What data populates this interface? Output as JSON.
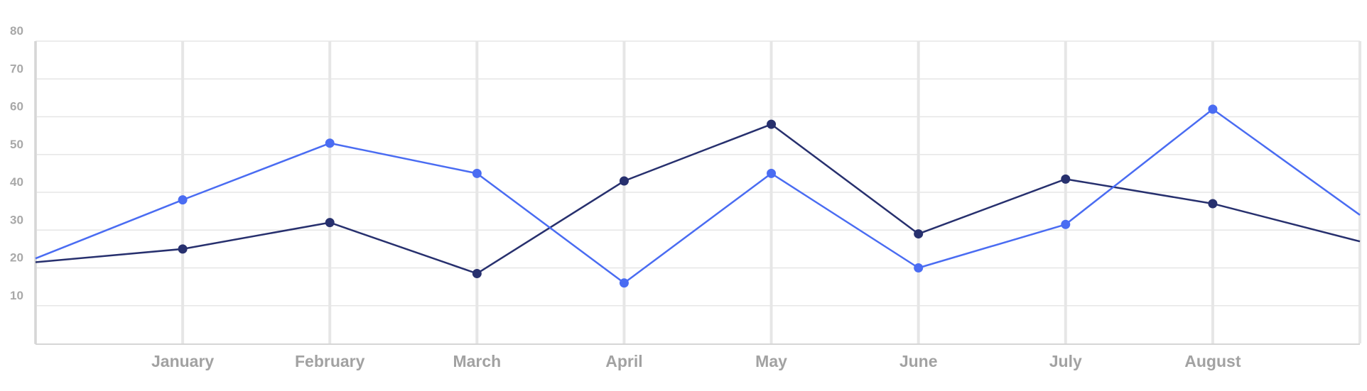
{
  "chart_data": {
    "type": "line",
    "categories": [
      "",
      "January",
      "February",
      "March",
      "April",
      "May",
      "June",
      "July",
      "August",
      ""
    ],
    "series": [
      {
        "values": [
          21.5,
          25,
          32,
          18.5,
          43,
          58,
          29,
          43.5,
          37,
          27
        ],
        "color": "#27306e"
      },
      {
        "values": [
          22.5,
          38,
          53,
          45,
          16,
          45,
          20,
          31.5,
          62,
          34
        ],
        "color": "#4a6cf2"
      }
    ],
    "ylim": [
      0,
      80
    ],
    "yticks": [
      10,
      20,
      30,
      40,
      50,
      60,
      70,
      80
    ],
    "grid": true,
    "legend": "none",
    "colors": {
      "grid": "#e6e6e6",
      "axis": "#d6d6d6",
      "tick_label": "#a5a5a5"
    }
  }
}
